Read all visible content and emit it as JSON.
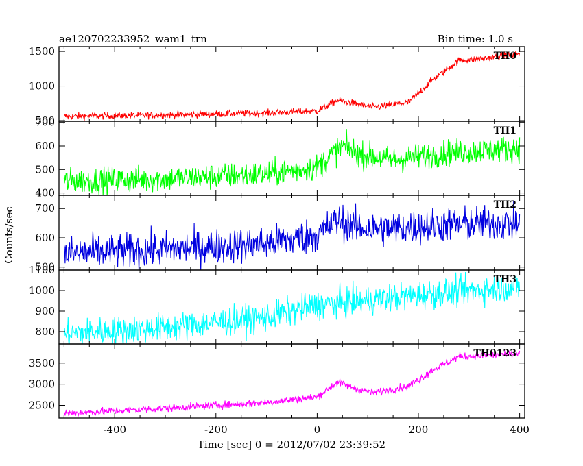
{
  "chart_data": {
    "type": "line",
    "title": "ae120702233952_wam1_trn",
    "subtitle": "Bin time: 1.0 s",
    "xlabel": "Time [sec] 0 = 2012/07/02 23:39:52",
    "ylabel": "Counts/sec",
    "xlim": [
      -510,
      410
    ],
    "x_ticks": [
      -400,
      -200,
      0,
      200,
      400
    ],
    "grid": false,
    "panels": [
      {
        "name": "TH0",
        "color": "#ff0000",
        "ylim": [
          490,
          1570
        ],
        "y_ticks": [
          500,
          1000,
          1500
        ],
        "noise": 25,
        "profile": [
          [
            -500,
            560
          ],
          [
            -300,
            580
          ],
          [
            -100,
            610
          ],
          [
            0,
            640
          ],
          [
            40,
            790
          ],
          [
            80,
            740
          ],
          [
            110,
            690
          ],
          [
            180,
            760
          ],
          [
            230,
            1100
          ],
          [
            280,
            1370
          ],
          [
            330,
            1400
          ],
          [
            400,
            1470
          ]
        ]
      },
      {
        "name": "TH1",
        "color": "#00ff00",
        "ylim": [
          390,
          705
        ],
        "y_ticks": [
          400,
          500,
          600,
          700
        ],
        "noise": 28,
        "profile": [
          [
            -500,
            450
          ],
          [
            -300,
            460
          ],
          [
            -100,
            480
          ],
          [
            0,
            510
          ],
          [
            50,
            600
          ],
          [
            90,
            560
          ],
          [
            150,
            540
          ],
          [
            250,
            570
          ],
          [
            400,
            590
          ]
        ]
      },
      {
        "name": "TH2",
        "color": "#0000e0",
        "ylim": [
          490,
          745
        ],
        "y_ticks": [
          500,
          600,
          700
        ],
        "noise": 30,
        "profile": [
          [
            -500,
            545
          ],
          [
            -300,
            560
          ],
          [
            -100,
            580
          ],
          [
            0,
            610
          ],
          [
            40,
            660
          ],
          [
            80,
            635
          ],
          [
            150,
            630
          ],
          [
            250,
            645
          ],
          [
            400,
            650
          ]
        ]
      },
      {
        "name": "TH3",
        "color": "#00ffff",
        "ylim": [
          740,
          1100
        ],
        "y_ticks": [
          800,
          900,
          1000,
          1100
        ],
        "noise": 35,
        "profile": [
          [
            -500,
            790
          ],
          [
            -300,
            820
          ],
          [
            -100,
            870
          ],
          [
            0,
            930
          ],
          [
            100,
            950
          ],
          [
            200,
            980
          ],
          [
            400,
            1020
          ]
        ]
      },
      {
        "name": "TH0123",
        "color": "#ff00ff",
        "ylim": [
          2200,
          3950
        ],
        "y_ticks": [
          2500,
          3000,
          3500
        ],
        "noise": 45,
        "profile": [
          [
            -500,
            2310
          ],
          [
            -300,
            2430
          ],
          [
            -100,
            2570
          ],
          [
            0,
            2700
          ],
          [
            40,
            3050
          ],
          [
            80,
            2880
          ],
          [
            110,
            2800
          ],
          [
            180,
            2950
          ],
          [
            230,
            3350
          ],
          [
            280,
            3650
          ],
          [
            330,
            3680
          ],
          [
            400,
            3720
          ]
        ]
      }
    ]
  }
}
